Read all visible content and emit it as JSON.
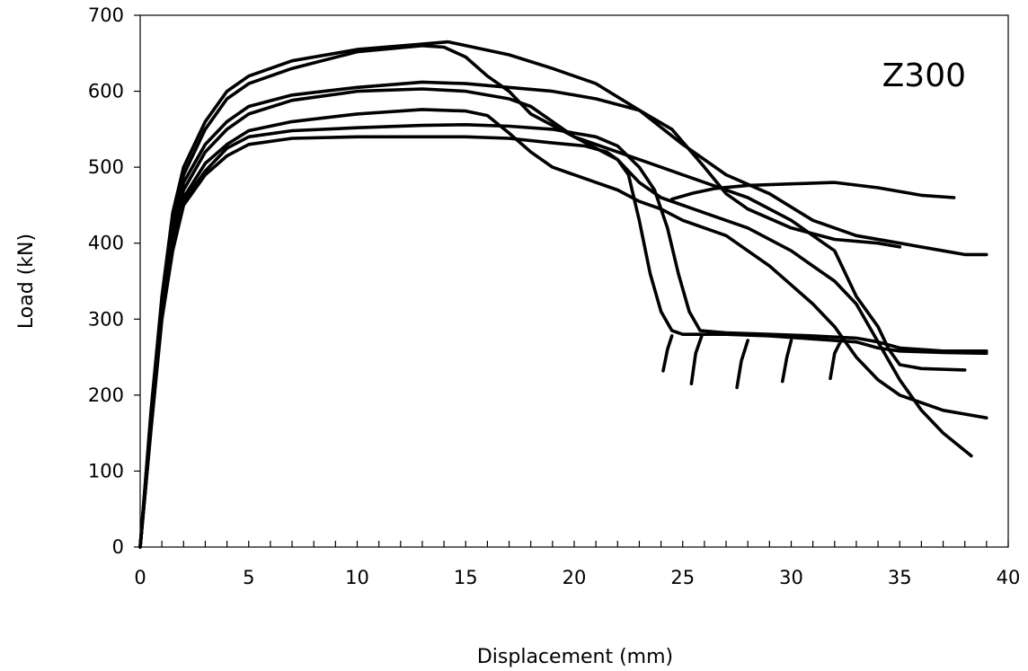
{
  "chart_data": {
    "type": "line",
    "title": "",
    "annotation": "Z300",
    "xlabel": "Displacement (mm)",
    "ylabel": "Load (kN)",
    "xlim": [
      0,
      40
    ],
    "ylim": [
      0,
      700
    ],
    "xticks": [
      0,
      5,
      10,
      15,
      20,
      25,
      30,
      35,
      40
    ],
    "yticks": [
      0,
      100,
      200,
      300,
      400,
      500,
      600,
      700
    ],
    "x_minor_step": 1,
    "grid": false,
    "legend": "none",
    "series": [
      {
        "points": [
          [
            0,
            0
          ],
          [
            0.5,
            180
          ],
          [
            1,
            330
          ],
          [
            1.5,
            440
          ],
          [
            2,
            500
          ],
          [
            3,
            560
          ],
          [
            4,
            600
          ],
          [
            5,
            620
          ],
          [
            7,
            640
          ],
          [
            10,
            655
          ],
          [
            13,
            662
          ],
          [
            14.2,
            665
          ],
          [
            15,
            660
          ],
          [
            17,
            648
          ],
          [
            19,
            630
          ],
          [
            21,
            610
          ],
          [
            23,
            575
          ],
          [
            25,
            530
          ],
          [
            27,
            490
          ],
          [
            29,
            465
          ],
          [
            31,
            430
          ],
          [
            33,
            410
          ],
          [
            35,
            400
          ],
          [
            37,
            390
          ],
          [
            38,
            385
          ],
          [
            39,
            385
          ]
        ]
      },
      {
        "points": [
          [
            0,
            0
          ],
          [
            0.5,
            175
          ],
          [
            1,
            325
          ],
          [
            1.5,
            430
          ],
          [
            2,
            490
          ],
          [
            3,
            550
          ],
          [
            4,
            590
          ],
          [
            5,
            610
          ],
          [
            7,
            630
          ],
          [
            10,
            652
          ],
          [
            13,
            660
          ],
          [
            14,
            658
          ],
          [
            15,
            645
          ],
          [
            16,
            620
          ],
          [
            17,
            600
          ],
          [
            18,
            570
          ],
          [
            20,
            540
          ],
          [
            22,
            520
          ],
          [
            24,
            500
          ],
          [
            26,
            480
          ],
          [
            28,
            460
          ],
          [
            30,
            430
          ],
          [
            31,
            410
          ],
          [
            32,
            390
          ],
          [
            33,
            330
          ],
          [
            34,
            290
          ],
          [
            34.5,
            260
          ],
          [
            35,
            240
          ],
          [
            36,
            235
          ],
          [
            38,
            233
          ]
        ]
      },
      {
        "points": [
          [
            0,
            0
          ],
          [
            0.5,
            170
          ],
          [
            1,
            320
          ],
          [
            1.5,
            420
          ],
          [
            2,
            480
          ],
          [
            3,
            530
          ],
          [
            4,
            560
          ],
          [
            5,
            580
          ],
          [
            7,
            595
          ],
          [
            10,
            605
          ],
          [
            13,
            612
          ],
          [
            15,
            610
          ],
          [
            17,
            605
          ],
          [
            19,
            600
          ],
          [
            21,
            590
          ],
          [
            23,
            575
          ],
          [
            24.5,
            550
          ],
          [
            26,
            500
          ],
          [
            27,
            465
          ],
          [
            28,
            445
          ],
          [
            30,
            420
          ],
          [
            32,
            405
          ],
          [
            34,
            400
          ],
          [
            35,
            395
          ]
        ]
      },
      {
        "points": [
          [
            0,
            0
          ],
          [
            0.5,
            165
          ],
          [
            1,
            315
          ],
          [
            1.5,
            410
          ],
          [
            2,
            470
          ],
          [
            3,
            520
          ],
          [
            4,
            550
          ],
          [
            5,
            570
          ],
          [
            7,
            588
          ],
          [
            10,
            600
          ],
          [
            13,
            603
          ],
          [
            15,
            600
          ],
          [
            17,
            590
          ],
          [
            18,
            580
          ],
          [
            19,
            560
          ],
          [
            20,
            540
          ],
          [
            21,
            525
          ],
          [
            22,
            510
          ],
          [
            23,
            480
          ],
          [
            24,
            460
          ],
          [
            26,
            440
          ],
          [
            28,
            420
          ],
          [
            30,
            390
          ],
          [
            31,
            370
          ],
          [
            32,
            350
          ],
          [
            33,
            320
          ],
          [
            34,
            270
          ],
          [
            35,
            220
          ],
          [
            36,
            180
          ],
          [
            37,
            150
          ],
          [
            38.3,
            120
          ]
        ]
      },
      {
        "points": [
          [
            0,
            0
          ],
          [
            0.5,
            160
          ],
          [
            1,
            310
          ],
          [
            1.5,
            400
          ],
          [
            2,
            460
          ],
          [
            3,
            505
          ],
          [
            4,
            530
          ],
          [
            5,
            548
          ],
          [
            7,
            560
          ],
          [
            10,
            570
          ],
          [
            13,
            576
          ],
          [
            15,
            574
          ],
          [
            16,
            568
          ],
          [
            17,
            545
          ],
          [
            18,
            520
          ],
          [
            19,
            500
          ],
          [
            20,
            490
          ],
          [
            21,
            480
          ],
          [
            22,
            470
          ],
          [
            23,
            455
          ],
          [
            24,
            445
          ],
          [
            25,
            430
          ],
          [
            27,
            410
          ],
          [
            28,
            390
          ],
          [
            29,
            370
          ],
          [
            30,
            345
          ],
          [
            31,
            320
          ],
          [
            32,
            290
          ],
          [
            33,
            250
          ],
          [
            34,
            220
          ],
          [
            35,
            200
          ],
          [
            36,
            190
          ],
          [
            37,
            180
          ],
          [
            38,
            175
          ],
          [
            39,
            170
          ]
        ]
      },
      {
        "points": [
          [
            0,
            0
          ],
          [
            0.5,
            155
          ],
          [
            1,
            300
          ],
          [
            1.5,
            390
          ],
          [
            2,
            450
          ],
          [
            3,
            490
          ],
          [
            4,
            515
          ],
          [
            5,
            530
          ],
          [
            7,
            538
          ],
          [
            10,
            540
          ],
          [
            13,
            540
          ],
          [
            15,
            540
          ],
          [
            17,
            538
          ],
          [
            19,
            532
          ],
          [
            20.5,
            528
          ],
          [
            21.5,
            520
          ],
          [
            22,
            510
          ],
          [
            22.5,
            490
          ],
          [
            23,
            430
          ],
          [
            23.5,
            360
          ],
          [
            24,
            310
          ],
          [
            24.5,
            285
          ],
          [
            25,
            280
          ],
          [
            27,
            280
          ],
          [
            29,
            278
          ],
          [
            31,
            274
          ],
          [
            33,
            270
          ],
          [
            34,
            262
          ],
          [
            35,
            258
          ],
          [
            37,
            256
          ],
          [
            39,
            255
          ]
        ]
      },
      {
        "points": [
          [
            0,
            0
          ],
          [
            0.5,
            158
          ],
          [
            1,
            305
          ],
          [
            1.5,
            395
          ],
          [
            2,
            455
          ],
          [
            3,
            495
          ],
          [
            4,
            525
          ],
          [
            5,
            540
          ],
          [
            7,
            548
          ],
          [
            10,
            552
          ],
          [
            13,
            555
          ],
          [
            15,
            556
          ],
          [
            17,
            554
          ],
          [
            19,
            550
          ],
          [
            21,
            540
          ],
          [
            22,
            528
          ],
          [
            23,
            500
          ],
          [
            23.7,
            470
          ],
          [
            24.3,
            420
          ],
          [
            24.8,
            360
          ],
          [
            25.3,
            310
          ],
          [
            25.8,
            285
          ],
          [
            27,
            282
          ],
          [
            29,
            280
          ],
          [
            31,
            278
          ],
          [
            33,
            275
          ],
          [
            34,
            270
          ],
          [
            35,
            262
          ],
          [
            37,
            258
          ],
          [
            39,
            258
          ]
        ]
      },
      {
        "points": [
          [
            24.1,
            232
          ],
          [
            24.3,
            260
          ],
          [
            24.5,
            278
          ]
        ]
      },
      {
        "points": [
          [
            25.4,
            215
          ],
          [
            25.6,
            255
          ],
          [
            25.9,
            280
          ]
        ]
      },
      {
        "points": [
          [
            27.5,
            210
          ],
          [
            27.7,
            245
          ],
          [
            28,
            272
          ]
        ]
      },
      {
        "points": [
          [
            29.6,
            218
          ],
          [
            29.8,
            250
          ],
          [
            30,
            272
          ]
        ]
      },
      {
        "points": [
          [
            31.8,
            222
          ],
          [
            32,
            255
          ],
          [
            32.3,
            272
          ]
        ]
      },
      {
        "points": [
          [
            24.5,
            458
          ],
          [
            25.5,
            466
          ],
          [
            26.5,
            472
          ],
          [
            28,
            476
          ],
          [
            30,
            478
          ],
          [
            32,
            480
          ],
          [
            34,
            473
          ],
          [
            36,
            463
          ],
          [
            37.5,
            460
          ]
        ]
      }
    ]
  }
}
